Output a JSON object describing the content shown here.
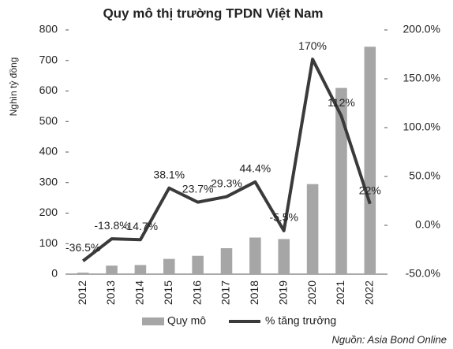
{
  "chart_data": {
    "type": "bar_line",
    "title": "Quy mô thị trường TPDN Việt Nam",
    "y_label": "Nghìn tỷ đồng",
    "source": "Nguồn: Asia Bond Online",
    "categories": [
      "2012",
      "2013",
      "2014",
      "2015",
      "2016",
      "2017",
      "2018",
      "2019",
      "2020",
      "2021",
      "2022"
    ],
    "series": [
      {
        "name": "Quy mô",
        "type": "bar",
        "color": "#a6a6a6",
        "values": [
          5,
          28,
          30,
          50,
          60,
          85,
          120,
          115,
          295,
          610,
          745
        ]
      },
      {
        "name": "% tăng trưởng",
        "type": "line",
        "axis": "y2",
        "color": "#3a3a3a",
        "values": [
          -36.5,
          -13.8,
          -14.7,
          38.1,
          23.7,
          29.3,
          44.4,
          -5.5,
          170,
          112,
          22
        ],
        "value_labels": [
          "-36.5%",
          "-13.8%",
          "-14.7%",
          "38.1%",
          "23.7%",
          "29.3%",
          "44.4%",
          "-5.5%",
          "170%",
          "112%",
          "22%"
        ]
      }
    ],
    "ylim": [
      0,
      800
    ],
    "yticks": [
      0,
      100,
      200,
      300,
      400,
      500,
      600,
      700,
      800
    ],
    "y2lim": [
      -50,
      200
    ],
    "y2ticks": [
      {
        "value": -50,
        "label": "-50.0%"
      },
      {
        "value": 0,
        "label": "0.0%"
      },
      {
        "value": 50,
        "label": "50.0%"
      },
      {
        "value": 100,
        "label": "100.0%"
      },
      {
        "value": 150,
        "label": "150.0%"
      },
      {
        "value": 200,
        "label": "200.0%"
      }
    ],
    "legend": "bottom",
    "grid": false
  }
}
